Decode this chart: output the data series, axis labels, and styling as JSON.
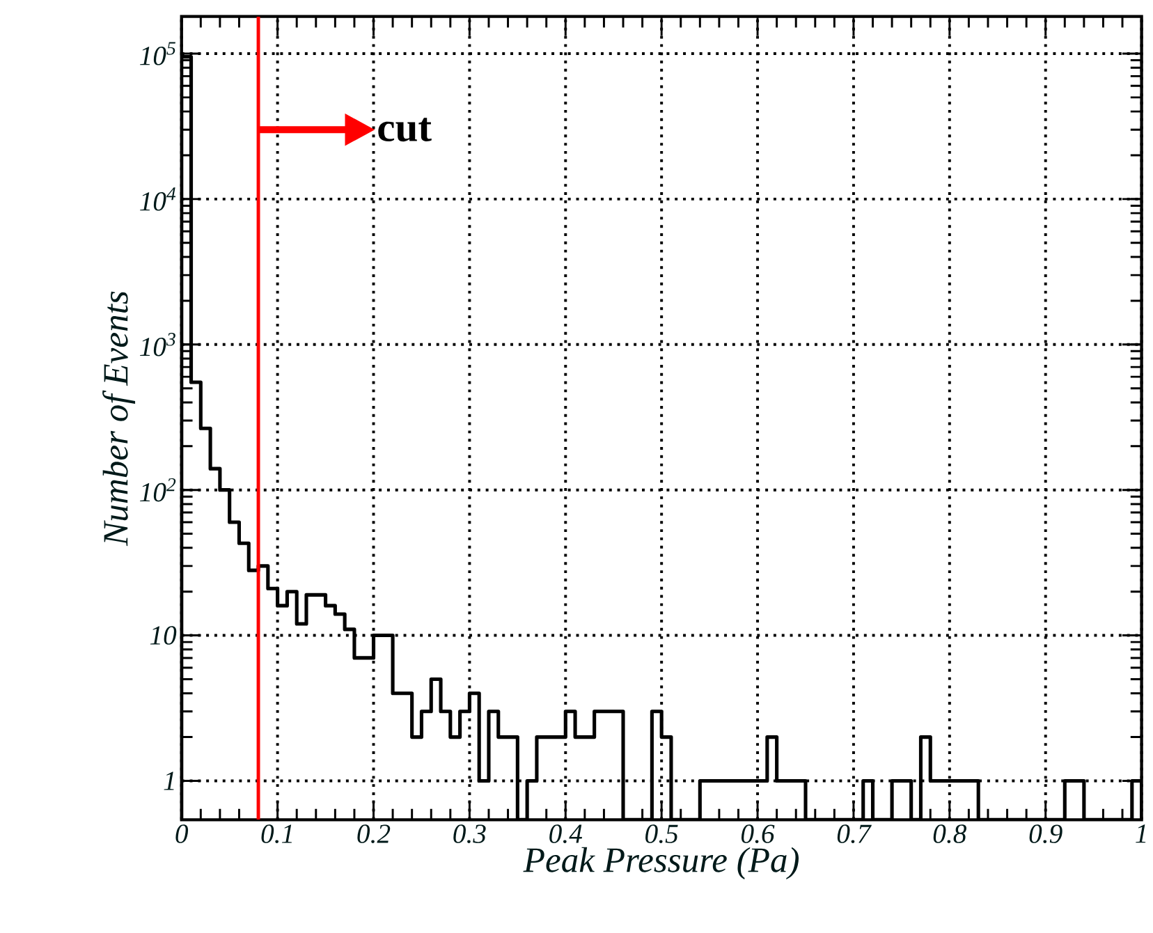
{
  "chart_data": {
    "type": "histogram",
    "xlabel": "Peak Pressure (Pa)",
    "ylabel": "Number of Events",
    "bins": [
      0,
      0.01,
      0.02,
      0.03,
      0.04,
      0.05,
      0.06,
      0.07,
      0.08,
      0.09,
      0.1,
      0.11,
      0.12,
      0.13,
      0.14,
      0.15,
      0.16,
      0.17,
      0.18,
      0.19,
      0.2,
      0.21,
      0.22,
      0.23,
      0.24,
      0.25,
      0.26,
      0.27,
      0.28,
      0.29,
      0.3,
      0.31,
      0.32,
      0.33,
      0.34,
      0.35,
      0.36,
      0.37,
      0.38,
      0.39,
      0.4,
      0.41,
      0.42,
      0.43,
      0.44,
      0.45,
      0.46,
      0.47,
      0.48,
      0.49,
      0.5,
      0.51,
      0.52,
      0.53,
      0.54,
      0.55,
      0.56,
      0.57,
      0.58,
      0.59,
      0.6,
      0.61,
      0.62,
      0.63,
      0.64,
      0.65,
      0.66,
      0.67,
      0.68,
      0.69,
      0.7,
      0.71,
      0.72,
      0.73,
      0.74,
      0.75,
      0.76,
      0.77,
      0.78,
      0.79,
      0.8,
      0.81,
      0.82,
      0.83,
      0.84,
      0.85,
      0.86,
      0.87,
      0.88,
      0.89,
      0.9,
      0.91,
      0.92,
      0.93,
      0.94,
      0.95,
      0.96,
      0.97,
      0.98,
      0.99,
      1
    ],
    "values": [
      95000,
      550,
      265,
      140,
      100,
      60,
      43,
      28,
      30,
      21,
      16,
      20,
      12,
      19,
      19,
      16,
      14,
      11,
      7,
      7,
      10,
      10,
      4,
      4,
      2,
      3,
      5,
      3,
      2,
      3,
      4,
      1,
      3,
      2,
      2,
      null,
      1,
      2,
      2,
      2,
      3,
      2,
      2,
      3,
      3,
      3,
      null,
      null,
      null,
      3,
      2,
      null,
      null,
      null,
      1,
      1,
      1,
      1,
      1,
      1,
      1,
      2,
      1,
      1,
      1,
      null,
      null,
      null,
      null,
      null,
      null,
      1,
      null,
      null,
      1,
      1,
      null,
      2,
      1,
      1,
      1,
      1,
      1,
      null,
      null,
      null,
      null,
      null,
      null,
      null,
      null,
      null,
      1,
      1,
      null,
      null,
      null,
      null,
      null,
      1
    ],
    "color": "#000000",
    "log": "y",
    "grid": true,
    "xlim": [
      0,
      1
    ],
    "ylim": [
      0.54,
      180000
    ],
    "xticks": [
      0,
      0.1,
      0.2,
      0.3,
      0.4,
      0.5,
      0.6,
      0.7,
      0.8,
      0.9,
      1
    ],
    "yticks": [
      1,
      10,
      {
        "value": 100,
        "label": "10$^{2}$"
      },
      {
        "value": 1000,
        "label": "10$^{3}$"
      },
      {
        "value": 10000,
        "label": "10$^{4}$"
      },
      {
        "value": 100000,
        "label": "10$^{5}$"
      }
    ],
    "ref_lines": [
      {
        "axis": "x",
        "value": 0.08,
        "label": "cut",
        "color": "#ff0000"
      }
    ]
  }
}
